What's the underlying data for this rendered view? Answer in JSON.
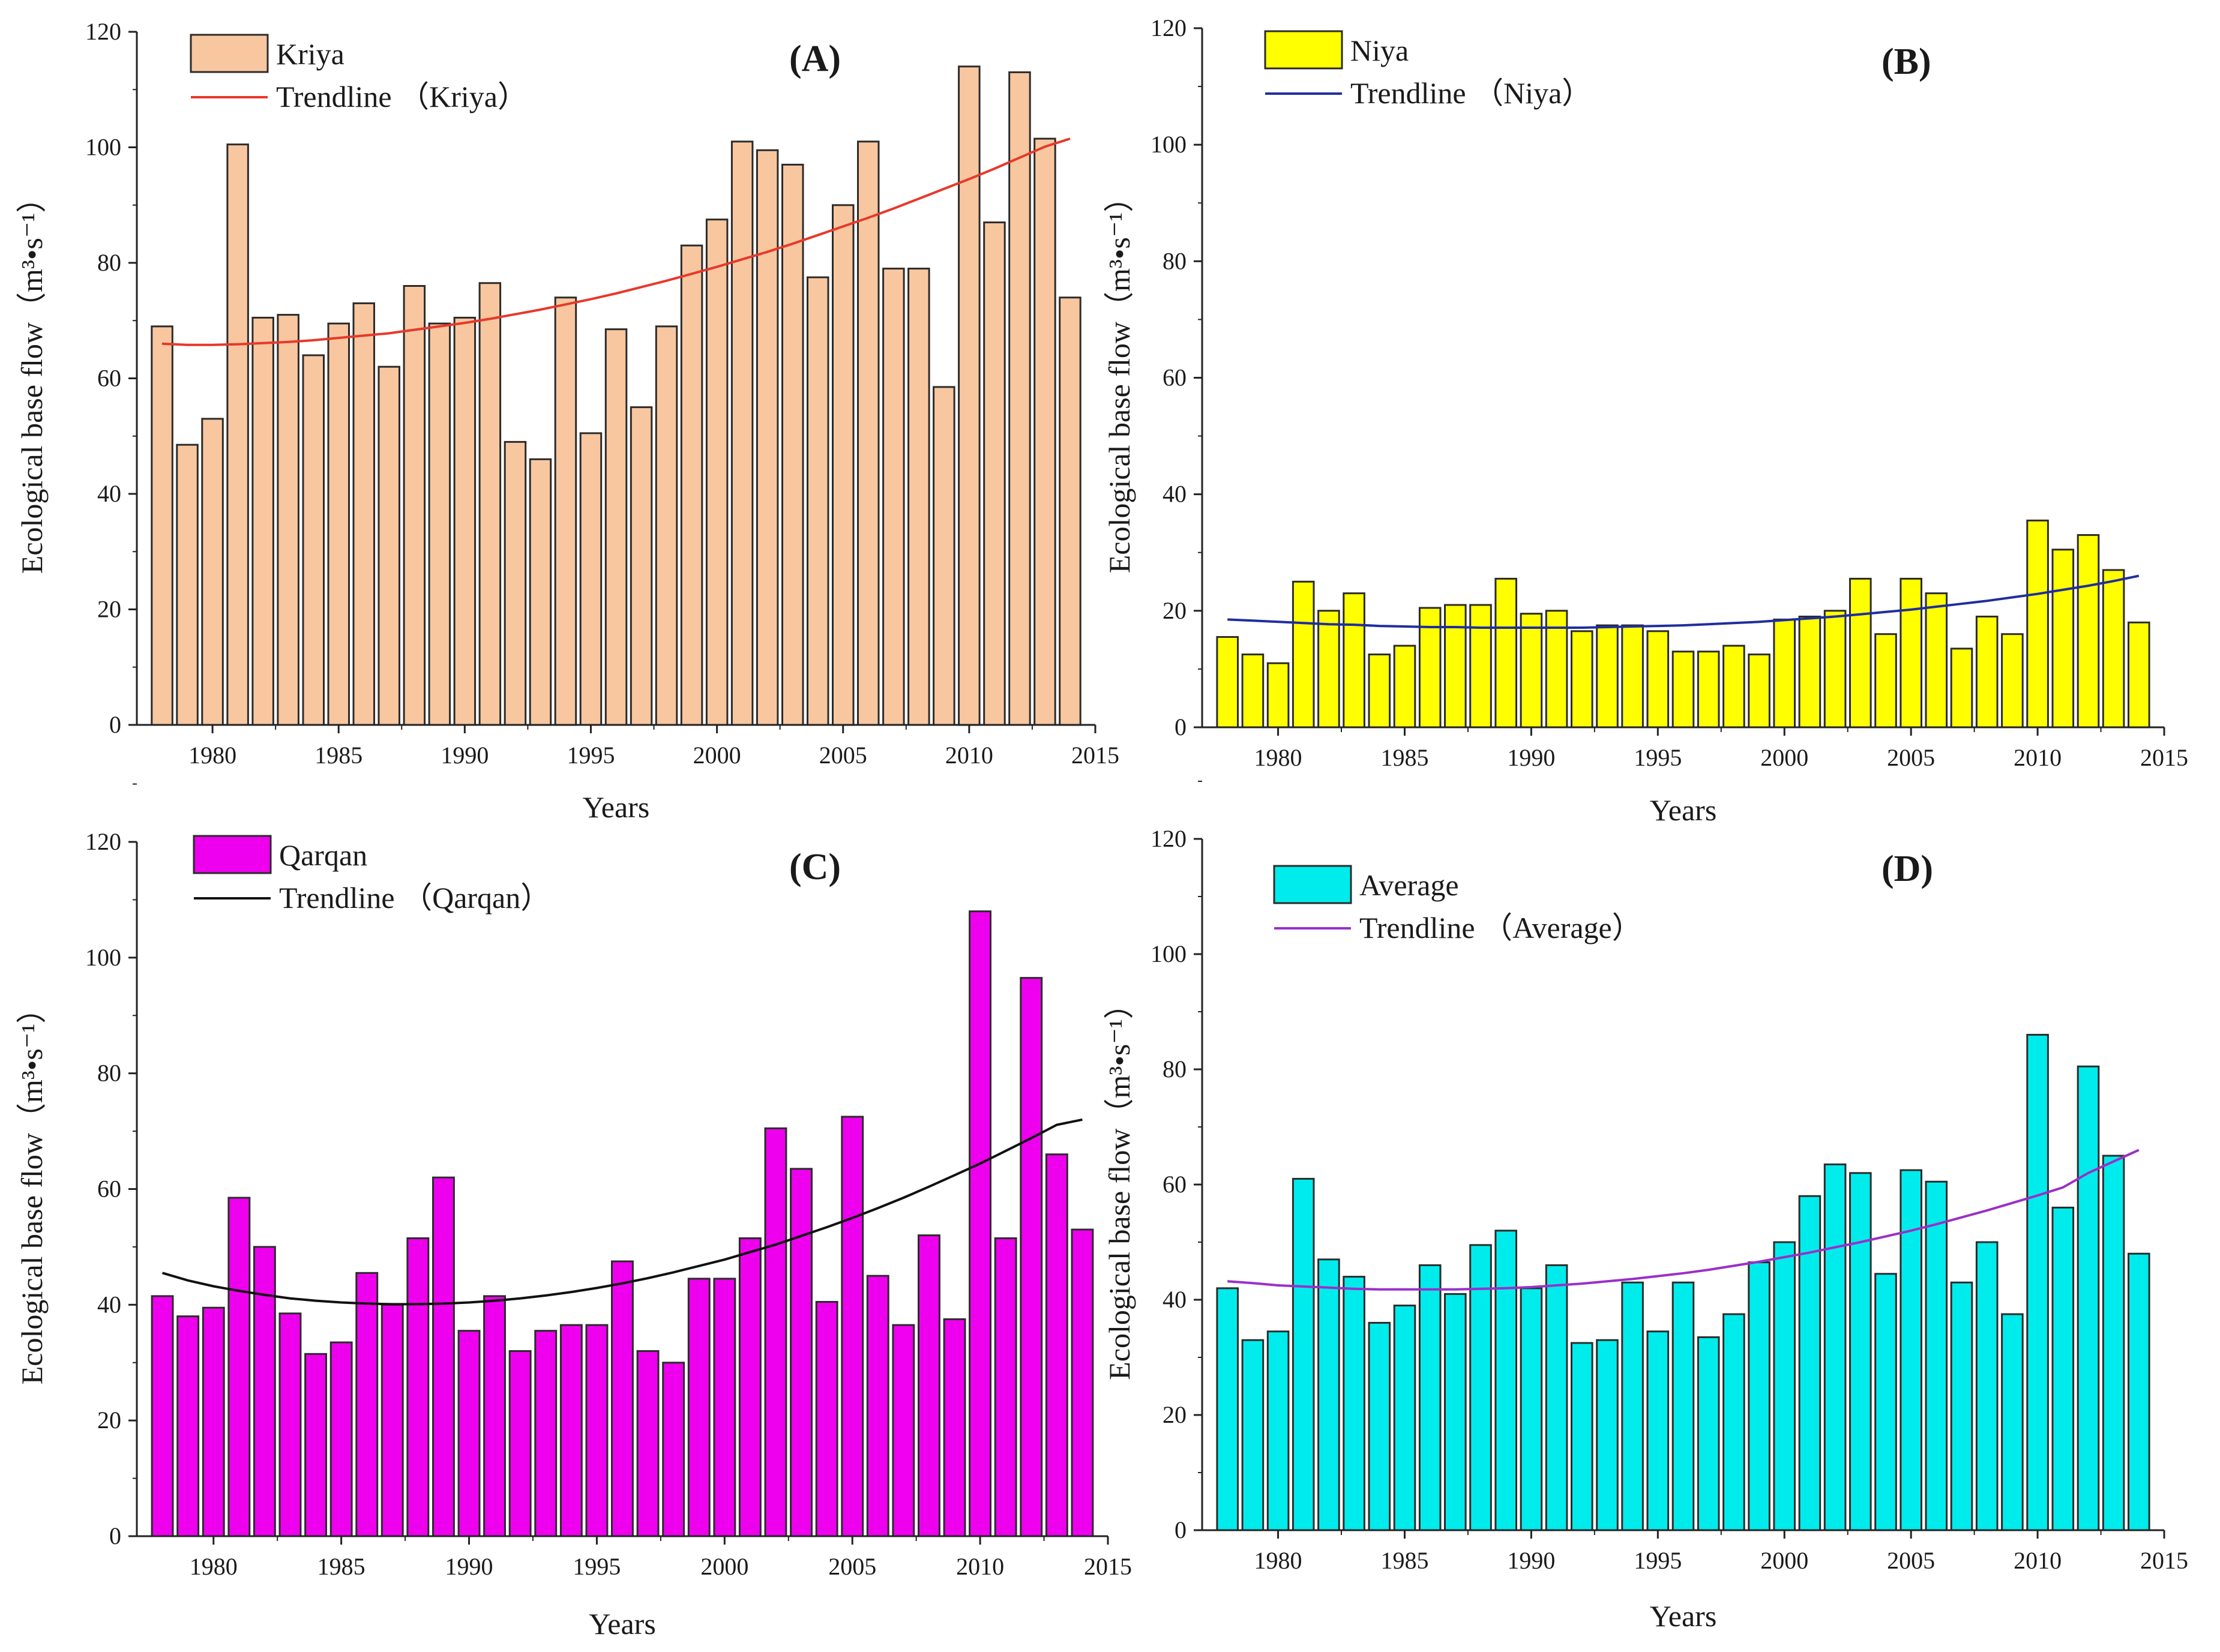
{
  "figure": {
    "x_axis_label": "Years",
    "y_axis_label": "Ecological base flow（m³•s⁻¹）"
  },
  "chart_data": [
    {
      "type": "bar",
      "panel_label": "(A)",
      "title": "",
      "xlabel": "Years",
      "ylabel": "Ecological base flow（m³•s⁻¹）",
      "xlim": [
        1977,
        2015
      ],
      "ylim": [
        0,
        120
      ],
      "x_ticks": [
        1980,
        1985,
        1990,
        1995,
        2000,
        2005,
        2010,
        2015
      ],
      "y_ticks": [
        0,
        20,
        40,
        60,
        80,
        100,
        120
      ],
      "x": [
        1978,
        1979,
        1980,
        1981,
        1982,
        1983,
        1984,
        1985,
        1986,
        1987,
        1988,
        1989,
        1990,
        1991,
        1992,
        1993,
        1994,
        1995,
        1996,
        1997,
        1998,
        1999,
        2000,
        2001,
        2002,
        2003,
        2004,
        2005,
        2006,
        2007,
        2008,
        2009,
        2010,
        2011,
        2012,
        2013,
        2014
      ],
      "series": [
        {
          "name": "Kriya",
          "kind": "bar",
          "color": "#f8c7a0",
          "values": [
            69,
            48.5,
            53,
            100.5,
            70.5,
            71,
            64,
            69.5,
            73,
            62,
            76,
            69.5,
            70.5,
            76.5,
            49,
            46,
            74,
            50.5,
            68.5,
            55,
            69,
            83,
            87.5,
            101,
            99.5,
            97,
            77.5,
            90,
            101,
            79,
            79,
            58.5,
            114,
            87,
            113,
            101.5,
            74
          ]
        },
        {
          "name": "Trendline （Kriya）",
          "kind": "trend",
          "color": "#e8382a",
          "values": [
            66,
            65.8,
            65.8,
            65.9,
            66.1,
            66.3,
            66.6,
            67,
            67.4,
            67.8,
            68.4,
            69,
            69.6,
            70.3,
            71.1,
            71.9,
            72.8,
            73.7,
            74.7,
            75.8,
            76.9,
            78.1,
            79.3,
            80.6,
            81.9,
            83.3,
            84.8,
            86.3,
            87.8,
            89.4,
            91.1,
            92.8,
            94.5,
            96.3,
            98.2,
            100.1,
            101.5
          ]
        }
      ]
    },
    {
      "type": "bar",
      "panel_label": "(B)",
      "title": "",
      "xlabel": "Years",
      "ylabel": "Ecological base flow（m³•s⁻¹）",
      "xlim": [
        1977,
        2015
      ],
      "ylim": [
        0,
        120
      ],
      "x_ticks": [
        1980,
        1985,
        1990,
        1995,
        2000,
        2005,
        2010,
        2015
      ],
      "y_ticks": [
        0,
        20,
        40,
        60,
        80,
        100,
        120
      ],
      "x": [
        1978,
        1979,
        1980,
        1981,
        1982,
        1983,
        1984,
        1985,
        1986,
        1987,
        1988,
        1989,
        1990,
        1991,
        1992,
        1993,
        1994,
        1995,
        1996,
        1997,
        1998,
        1999,
        2000,
        2001,
        2002,
        2003,
        2004,
        2005,
        2006,
        2007,
        2008,
        2009,
        2010,
        2011,
        2012,
        2013,
        2014
      ],
      "series": [
        {
          "name": "Niya",
          "kind": "bar",
          "color": "#ffff00",
          "values": [
            15.5,
            12.5,
            11,
            25,
            20,
            23,
            12.5,
            14,
            20.5,
            21,
            21,
            25.5,
            19.5,
            20,
            16.5,
            17.5,
            17.5,
            16.5,
            13,
            13,
            14,
            12.5,
            18.5,
            19,
            20,
            25.5,
            16,
            25.5,
            23,
            13.5,
            19,
            16,
            35.5,
            30.5,
            33,
            27,
            18
          ]
        },
        {
          "name": "Trendline （Niya）",
          "kind": "trend",
          "color": "#1f2e9e",
          "values": [
            18.5,
            18.3,
            18.1,
            17.9,
            17.7,
            17.6,
            17.4,
            17.3,
            17.2,
            17.2,
            17.1,
            17.1,
            17.1,
            17.1,
            17.1,
            17.2,
            17.3,
            17.4,
            17.5,
            17.7,
            17.9,
            18.1,
            18.4,
            18.7,
            19,
            19.4,
            19.8,
            20.2,
            20.7,
            21.2,
            21.7,
            22.3,
            22.9,
            23.6,
            24.3,
            25.1,
            26
          ]
        }
      ]
    },
    {
      "type": "bar",
      "panel_label": "(C)",
      "title": "",
      "xlabel": "Years",
      "ylabel": "Ecological base flow（m³•s⁻¹）",
      "xlim": [
        1977,
        2015
      ],
      "ylim": [
        0,
        120
      ],
      "x_ticks": [
        1980,
        1985,
        1990,
        1995,
        2000,
        2005,
        2010,
        2015
      ],
      "y_ticks": [
        0,
        20,
        40,
        60,
        80,
        100,
        120
      ],
      "x": [
        1978,
        1979,
        1980,
        1981,
        1982,
        1983,
        1984,
        1985,
        1986,
        1987,
        1988,
        1989,
        1990,
        1991,
        1992,
        1993,
        1994,
        1995,
        1996,
        1997,
        1998,
        1999,
        2000,
        2001,
        2002,
        2003,
        2004,
        2005,
        2006,
        2007,
        2008,
        2009,
        2010,
        2011,
        2012,
        2013,
        2014
      ],
      "series": [
        {
          "name": "Qarqan",
          "kind": "bar",
          "color": "#ee00ee",
          "values": [
            41.5,
            38,
            39.5,
            58.5,
            50,
            38.5,
            31.5,
            33.5,
            45.5,
            40,
            51.5,
            62,
            35.5,
            41.5,
            32,
            35.5,
            36.5,
            36.5,
            47.5,
            32,
            30,
            44.5,
            44.5,
            51.5,
            70.5,
            63.5,
            40.5,
            72.5,
            45,
            36.5,
            52,
            37.5,
            108,
            51.5,
            96.5,
            66,
            53
          ]
        },
        {
          "name": "Trendline （Qarqan）",
          "kind": "trend",
          "color": "#111111",
          "values": [
            45.5,
            44.2,
            43.2,
            42.4,
            41.7,
            41.1,
            40.7,
            40.4,
            40.2,
            40.1,
            40.1,
            40.2,
            40.4,
            40.7,
            41.1,
            41.6,
            42.2,
            42.9,
            43.7,
            44.6,
            45.6,
            46.7,
            47.8,
            49.1,
            50.4,
            51.9,
            53.4,
            55,
            56.7,
            58.5,
            60.4,
            62.4,
            64.4,
            66.6,
            68.8,
            71.1,
            72
          ]
        }
      ]
    },
    {
      "type": "bar",
      "panel_label": "(D)",
      "title": "",
      "xlabel": "Years",
      "ylabel": "Ecological base flow（m³•s⁻¹）",
      "xlim": [
        1977,
        2015
      ],
      "ylim": [
        0,
        120
      ],
      "x_ticks": [
        1980,
        1985,
        1990,
        1995,
        2000,
        2005,
        2010,
        2015
      ],
      "y_ticks": [
        0,
        20,
        40,
        60,
        80,
        100,
        120
      ],
      "x": [
        1978,
        1979,
        1980,
        1981,
        1982,
        1983,
        1984,
        1985,
        1986,
        1987,
        1988,
        1989,
        1990,
        1991,
        1992,
        1993,
        1994,
        1995,
        1996,
        1997,
        1998,
        1999,
        2000,
        2001,
        2002,
        2003,
        2004,
        2005,
        2006,
        2007,
        2008,
        2009,
        2010,
        2011,
        2012,
        2013,
        2014
      ],
      "series": [
        {
          "name": "Average",
          "kind": "bar",
          "color": "#00ecec",
          "values": [
            42,
            33,
            34.5,
            61,
            47,
            44,
            36,
            39,
            46,
            41,
            49.5,
            52,
            42,
            46,
            32.5,
            33,
            43,
            34.5,
            43,
            33.5,
            37.5,
            46.5,
            50,
            58,
            63.5,
            62,
            44.5,
            62.5,
            60.5,
            43,
            50,
            37.5,
            86,
            56,
            80.5,
            65,
            48
          ]
        },
        {
          "name": "Trendline （Average）",
          "kind": "trend",
          "color": "#9a30c8",
          "values": [
            43.2,
            42.9,
            42.5,
            42.3,
            42.1,
            41.9,
            41.8,
            41.8,
            41.8,
            41.8,
            41.9,
            42,
            42.2,
            42.5,
            42.8,
            43.2,
            43.6,
            44.1,
            44.6,
            45.2,
            45.9,
            46.6,
            47.4,
            48.2,
            49.1,
            50,
            51,
            52,
            53.1,
            54.3,
            55.5,
            56.8,
            58.1,
            59.5,
            62,
            64,
            66
          ]
        }
      ]
    }
  ]
}
